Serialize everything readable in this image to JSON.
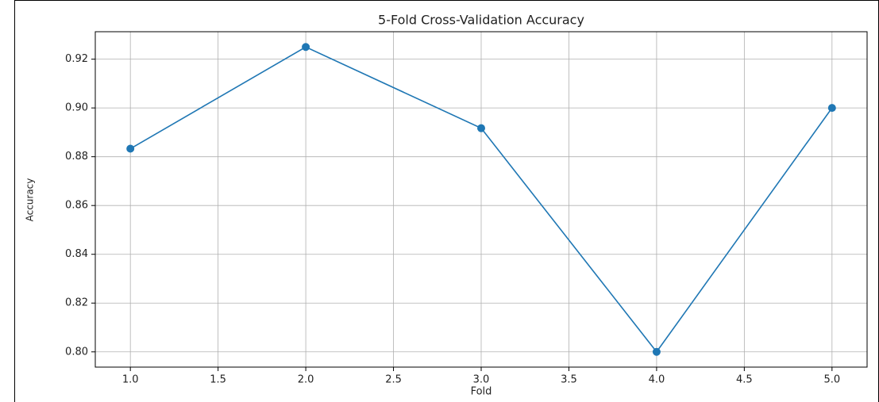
{
  "chart_data": {
    "type": "line",
    "title": "5-Fold Cross-Validation Accuracy",
    "x_label": "Fold",
    "y_label": "Accuracy",
    "x": [
      1,
      2,
      3,
      4,
      5
    ],
    "series": [
      {
        "name": "Accuracy",
        "color": "#1f77b4",
        "values": [
          0.8833,
          0.925,
          0.8917,
          0.8,
          0.9
        ]
      }
    ],
    "xlim": [
      0.8,
      5.2
    ],
    "xticks": [
      {
        "value": 1,
        "label": "1.0"
      },
      1.5,
      {
        "value": 2,
        "label": "2.0"
      },
      2.5,
      {
        "value": 3,
        "label": "3.0"
      },
      3.5,
      {
        "value": 4,
        "label": "4.0"
      },
      4.5,
      {
        "value": 5,
        "label": "5.0"
      }
    ],
    "ylim": [
      0.79375,
      0.93125
    ],
    "yticks": [
      {
        "value": 0.8,
        "label": "0.80"
      },
      0.82,
      0.84,
      0.86,
      0.88,
      {
        "value": 0.9,
        "label": "0.90"
      },
      0.92
    ],
    "grid": true
  }
}
